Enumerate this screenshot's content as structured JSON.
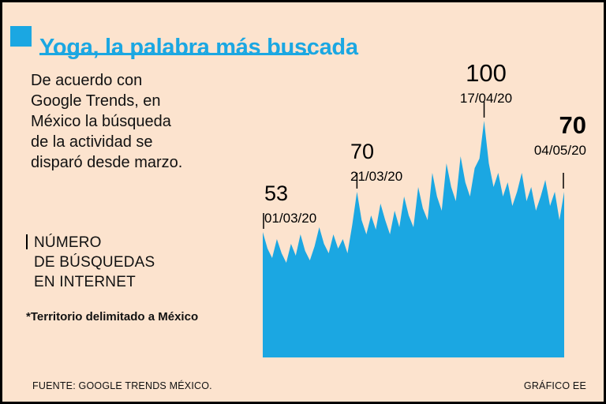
{
  "title": "Yoga, la palabra más buscada",
  "intro_lines": [
    "De acuerdo con",
    "Google Trends, en",
    "México la búsqueda",
    "de la actividad se",
    "disparó desde marzo."
  ],
  "series_label_lines": [
    "NÚMERO",
    "DE BÚSQUEDAS",
    "EN INTERNET"
  ],
  "footnote": "*Territorio delimitado a México",
  "source": "FUENTE: GOOGLE TRENDS MÉXICO.",
  "credit": "GRÁFICO EE",
  "colors": {
    "accent": "#1BA7E2",
    "background": "#FCE3CE",
    "text": "#111111"
  },
  "chart_data": {
    "type": "area",
    "title": "Número de búsquedas en internet (Google Trends, México)",
    "x_start": "01/03/20",
    "x_end": "04/05/20",
    "ylim": [
      0,
      100
    ],
    "values": [
      53,
      46,
      42,
      50,
      44,
      40,
      48,
      43,
      52,
      45,
      41,
      47,
      55,
      48,
      44,
      52,
      46,
      50,
      44,
      56,
      70,
      58,
      52,
      60,
      54,
      65,
      58,
      52,
      62,
      55,
      68,
      60,
      55,
      72,
      63,
      58,
      78,
      68,
      62,
      82,
      72,
      66,
      85,
      74,
      68,
      80,
      84,
      100,
      82,
      72,
      78,
      68,
      74,
      64,
      70,
      78,
      66,
      72,
      62,
      68,
      75,
      64,
      70,
      58,
      70
    ],
    "annotations": [
      {
        "value": "53",
        "date": "01/03/20",
        "day_index": 0,
        "bold": false
      },
      {
        "value": "70",
        "date": "21/03/20",
        "day_index": 20,
        "bold": false
      },
      {
        "value": "100",
        "date": "17/04/20",
        "day_index": 47,
        "bold": false
      },
      {
        "value": "70",
        "date": "04/05/20",
        "day_index": 64,
        "bold": true
      }
    ]
  }
}
